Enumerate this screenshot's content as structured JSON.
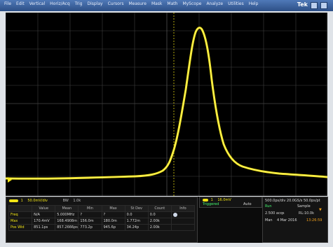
{
  "menu": {
    "items": [
      "File",
      "Edit",
      "Vertical",
      "Horiz/Acq",
      "Trig",
      "Display",
      "Cursors",
      "Measure",
      "Mask",
      "Math",
      "MyScope",
      "Analyze",
      "Utilities",
      "Help"
    ],
    "brand": "Tek"
  },
  "waveform": {
    "color": "#f2e515",
    "grid_color": "#4c4c4c",
    "shape": "single-positive-pulse"
  },
  "status": {
    "channel_chip": {
      "label": "1",
      "scale": "50.0mV/div",
      "bw": "BW",
      "impedance": "1.0k",
      "color": "#f2e515"
    },
    "measurements": {
      "headers": [
        "",
        "Value",
        "Mean",
        "Min",
        "Max",
        "St Dev",
        "Count",
        "Info"
      ],
      "rows": [
        [
          "Freq",
          "N/A",
          "5.000MHz",
          "?",
          "?",
          "0.0",
          "0.0",
          ""
        ],
        [
          "Max",
          "170.4mV",
          "168.4908m",
          "156.0m",
          "180.0m",
          "1.772m",
          "2.00k",
          ""
        ],
        [
          "Pos Wid",
          "851.1ps",
          "857.2666ps",
          "773.2p",
          "945.6p",
          "34.24p",
          "2.00k",
          ""
        ]
      ]
    },
    "trigger": {
      "chip": "1",
      "level": "16.0mV",
      "status_label": "Triggered",
      "mode": "Auto"
    },
    "acq": {
      "samples_row": "500.0ps/div 20.0GS/s 50.0ps/pt",
      "run": "Run",
      "sample": "Sample",
      "record": "2.500 acqs",
      "rl": "RL:10.0k",
      "date_label": "Man",
      "date": "4 Mar 2016",
      "time": "13:26:59"
    }
  }
}
